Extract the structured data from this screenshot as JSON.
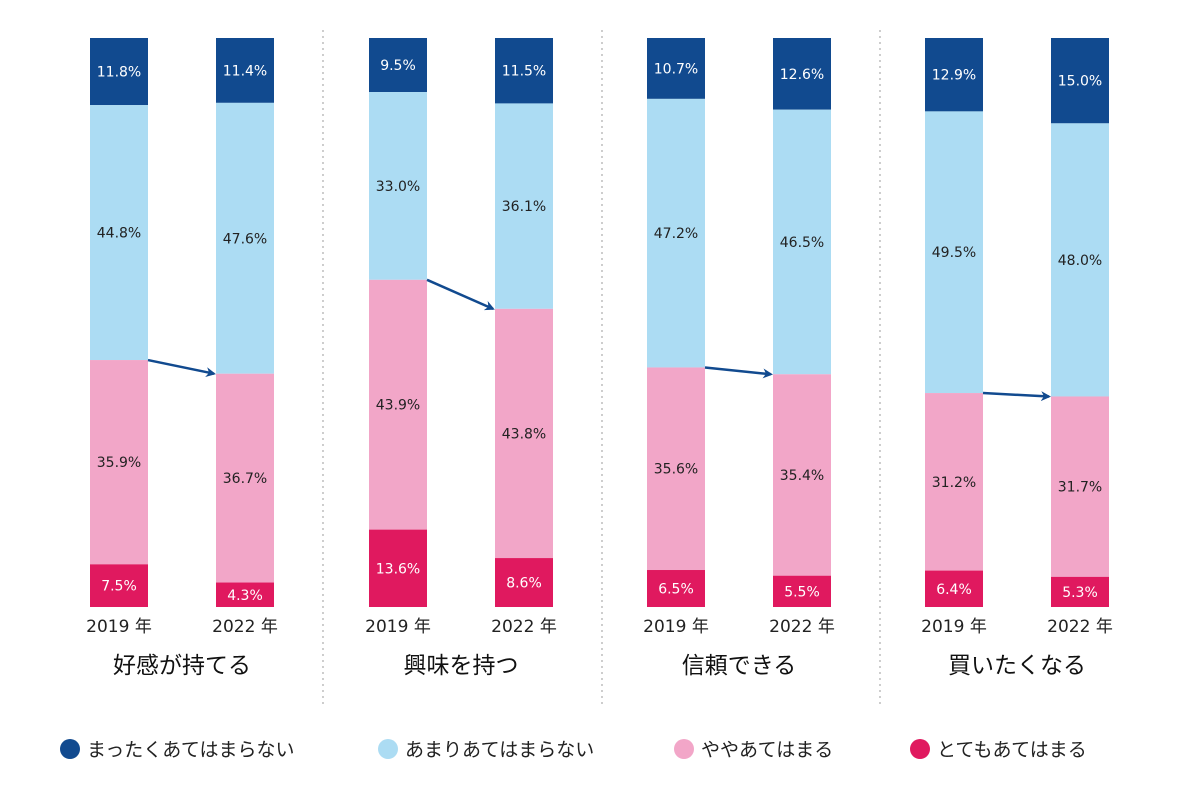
{
  "chart_data": {
    "type": "bar",
    "stacked": true,
    "unit": "%",
    "series": [
      {
        "name": "まったくあてはまらない",
        "color": "#114a8f"
      },
      {
        "name": "あまりあてはまらない",
        "color": "#acdcf3"
      },
      {
        "name": "ややあてはまる",
        "color": "#f2a6c8"
      },
      {
        "name": "とてもあてはまる",
        "color": "#e0195f"
      }
    ],
    "groups": [
      {
        "title": "好感が持てる",
        "bars": [
          {
            "label": "2019 年",
            "values": [
              11.8,
              44.8,
              35.9,
              7.5
            ],
            "texts": [
              "11.8%",
              "44.8%",
              "35.9%",
              "7.5%"
            ]
          },
          {
            "label": "2022 年",
            "values": [
              11.4,
              47.6,
              36.7,
              4.3
            ],
            "texts": [
              "11.4%",
              "47.6%",
              "36.7%",
              "4.3%"
            ]
          }
        ]
      },
      {
        "title": "興味を持つ",
        "bars": [
          {
            "label": "2019 年",
            "values": [
              9.5,
              33.0,
              43.9,
              13.6
            ],
            "texts": [
              "9.5%",
              "33.0%",
              "43.9%",
              "13.6%"
            ]
          },
          {
            "label": "2022 年",
            "values": [
              11.5,
              36.1,
              43.8,
              8.6
            ],
            "texts": [
              "11.5%",
              "36.1%",
              "43.8%",
              "8.6%"
            ]
          }
        ]
      },
      {
        "title": "信頼できる",
        "bars": [
          {
            "label": "2019 年",
            "values": [
              10.7,
              47.2,
              35.6,
              6.5
            ],
            "texts": [
              "10.7%",
              "47.2%",
              "35.6%",
              "6.5%"
            ]
          },
          {
            "label": "2022 年",
            "values": [
              12.6,
              46.5,
              35.4,
              5.5
            ],
            "texts": [
              "12.6%",
              "46.5%",
              "35.4%",
              "5.5%"
            ]
          }
        ]
      },
      {
        "title": "買いたくなる",
        "bars": [
          {
            "label": "2019 年",
            "values": [
              12.9,
              49.5,
              31.2,
              6.4
            ],
            "texts": [
              "12.9%",
              "49.5%",
              "31.2%",
              "6.4%"
            ]
          },
          {
            "label": "2022 年",
            "values": [
              15.0,
              48.0,
              31.7,
              5.3
            ],
            "texts": [
              "15.0%",
              "48.0%",
              "31.7%",
              "5.3%"
            ]
          }
        ]
      }
    ],
    "legend_position": "bottom",
    "arrow_color": "#114a8f",
    "separator_color": "#b8b8b8"
  }
}
